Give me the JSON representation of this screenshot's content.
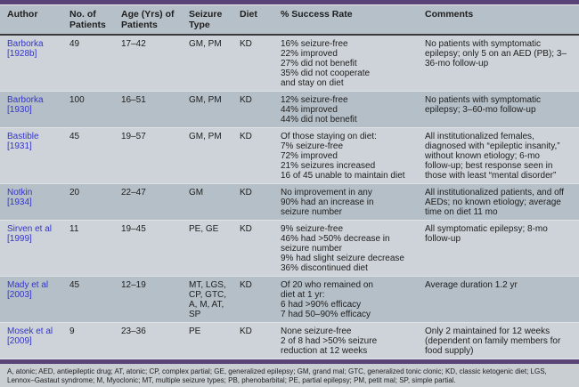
{
  "table": {
    "columns": [
      "Author",
      "No. of Patients",
      "Age (Yrs) of Patients",
      "Seizure Type",
      "Diet",
      "% Success Rate",
      "Comments"
    ],
    "rows": [
      {
        "author": "Barborka\n[1928b]",
        "n": "49",
        "age": "17–42",
        "seizure": "GM, PM",
        "diet": "KD",
        "success": "16% seizure-free\n22% improved\n27% did not benefit\n35% did not cooperate\nand stay on diet",
        "comments": "No patients with symptomatic epilepsy; only 5 on an AED (PB); 3–36-mo follow-up"
      },
      {
        "author": "Barborka\n[1930]",
        "n": "100",
        "age": "16–51",
        "seizure": "GM, PM",
        "diet": "KD",
        "success": "12% seizure-free\n44% improved\n44% did not benefit",
        "comments": "No patients with symptomatic epilepsy; 3–60-mo follow-up"
      },
      {
        "author": "Bastible\n[1931]",
        "n": "45",
        "age": "19–57",
        "seizure": "GM, PM",
        "diet": "KD",
        "success": "Of those staying on diet:\n7% seizure-free\n72% improved\n21% seizures increased\n16 of 45 unable to maintain diet",
        "comments": "All institutionalized females, diagnosed with “epileptic insanity,” without known etiology; 6-mo follow-up; best response seen in those with least “mental disorder”"
      },
      {
        "author": "Notkin\n[1934]",
        "n": "20",
        "age": "22–47",
        "seizure": "GM",
        "diet": "KD",
        "success": "No improvement in any\n90% had an increase in\nseizure number",
        "comments": "All institutionalized patients, and off AEDs; no known etiology; average time on diet 11 mo"
      },
      {
        "author": "Sirven et al\n[1999]",
        "n": "11",
        "age": "19–45",
        "seizure": "PE, GE",
        "diet": "KD",
        "success": "9% seizure-free\n46% had >50% decrease in\nseizure number\n9% had slight seizure decrease\n36% discontinued diet",
        "comments": "All symptomatic epilepsy; 8-mo follow-up"
      },
      {
        "author": "Mady et al\n[2003]",
        "n": "45",
        "age": "12–19",
        "seizure": "MT, LGS,\nCP, GTC,\nA, M, AT,\nSP",
        "diet": "KD",
        "success": "Of 20 who remained on\ndiet at 1 yr:\n6 had >90% efficacy\n7 had 50–90% efficacy",
        "comments": "Average duration 1.2 yr"
      },
      {
        "author": "Mosek et al\n[2009]",
        "n": "9",
        "age": "23–36",
        "seizure": "PE",
        "diet": "KD",
        "success": "None seizure-free\n2 of 8 had >50% seizure\nreduction at 12 weeks",
        "comments": "Only 2 maintained for 12 weeks (dependent on family members for food supply)"
      }
    ]
  },
  "footnote": "A, atonic; AED, antiepileptic drug; AT, atonic; CP, complex partial; GE, generalized epilepsy; GM, grand mal; GTC, generalized tonic clonic; KD, classic ketogenic diet; LGS, Lennox–Gastaut syndrome; M, Myoclonic; MT, multiple seizure types; PB, phenobarbital; PE, partial epilepsy; PM, petit mal; SP, simple partial.",
  "colors": {
    "accent_purple": "#5a4477",
    "link_blue": "#3434cc",
    "row_light": "#cdd3d8",
    "row_dark": "#b5bfc7",
    "header_bg": "#b6c0c8",
    "footnote_bg": "#c9ced3"
  }
}
